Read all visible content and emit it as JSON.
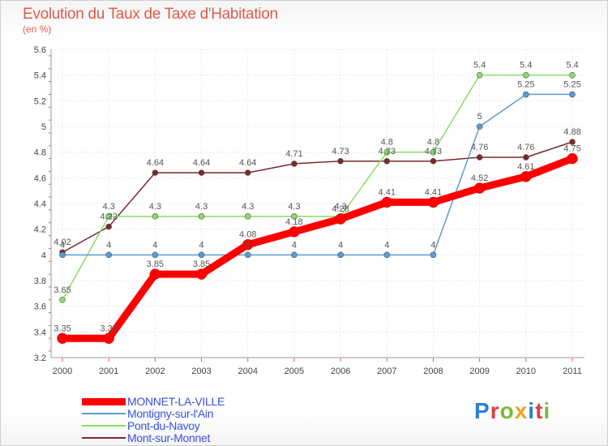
{
  "title": "Evolution du Taux de Taxe d'Habitation",
  "unit": "(en %)",
  "logo": "Proxiti",
  "chart_data": {
    "type": "line",
    "title": "Evolution du Taux de Taxe d'Habitation",
    "ylabel": "(en %)",
    "ylim": [
      3.2,
      5.6
    ],
    "yticks": [
      "3.2",
      "3.4",
      "3.6",
      "3.8",
      "4",
      "4.2",
      "4.4",
      "4.6",
      "4.8",
      "5",
      "5.2",
      "5.4",
      "5.6"
    ],
    "categories": [
      "2000",
      "2001",
      "2002",
      "2003",
      "2004",
      "2005",
      "2006",
      "2007",
      "2008",
      "2009",
      "2010",
      "2011"
    ],
    "series": [
      {
        "name": "MONNET-LA-VILLE",
        "color": "#ff0000",
        "values": [
          3.35,
          3.35,
          3.85,
          3.85,
          4.08,
          4.18,
          4.28,
          4.41,
          4.41,
          4.52,
          4.61,
          4.75
        ],
        "labels": [
          "3.35",
          "3.35",
          "3.85",
          "3.85",
          "4.08",
          "4.18",
          "4.28",
          "4.41",
          "4.41",
          "4.52",
          "4.61",
          "4.75"
        ]
      },
      {
        "name": "Montigny-sur-l'Ain",
        "color": "#5b9bd5",
        "values": [
          4,
          4,
          4,
          4,
          4,
          4,
          4,
          4,
          4,
          5,
          5.25,
          5.25
        ],
        "labels": [
          "4",
          "4",
          "4",
          "4",
          "4",
          "4",
          "4",
          "4",
          "4",
          "5",
          "5.25",
          "5.25"
        ]
      },
      {
        "name": "Pont-du-Navoy",
        "color": "#88dd66",
        "values": [
          3.65,
          4.3,
          4.3,
          4.3,
          4.3,
          4.3,
          4.3,
          4.8,
          4.8,
          5.4,
          5.4,
          5.4
        ],
        "labels": [
          "3.65",
          "4.3",
          "4.3",
          "4.3",
          "4.3",
          "4.3",
          "4.3",
          "4.8",
          "4.8",
          "5.4",
          "5.4",
          "5.4"
        ]
      },
      {
        "name": "Mont-sur-Monnet",
        "color": "#7a2a2a",
        "values": [
          4.02,
          4.22,
          4.64,
          4.64,
          4.64,
          4.71,
          4.73,
          4.73,
          4.73,
          4.76,
          4.76,
          4.88
        ],
        "labels": [
          "4.02",
          "4.22",
          "4.64",
          "4.64",
          "4.64",
          "4.71",
          "4.73",
          "4.73",
          "4.73",
          "4.76",
          "4.76",
          "4.88"
        ]
      }
    ],
    "legend": "bottom-left"
  }
}
